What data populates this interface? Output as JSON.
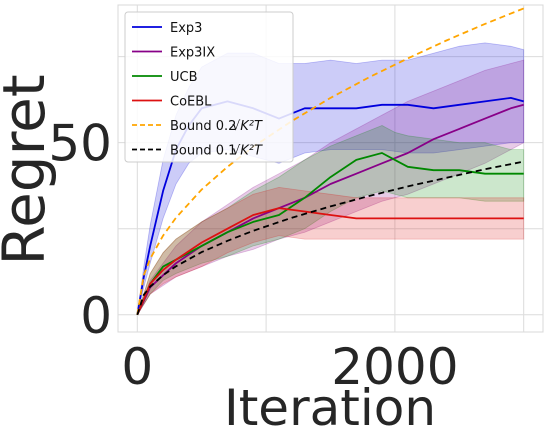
{
  "chart_data": {
    "type": "line",
    "title": "",
    "xlabel": "Iteration",
    "ylabel": "Regret",
    "xlim": [
      -150,
      3150
    ],
    "ylim": [
      -5,
      90
    ],
    "xticks": [
      0,
      2000
    ],
    "xtick_labels": [
      "0",
      "2000"
    ],
    "yticks": [
      0,
      50
    ],
    "ytick_labels": [
      "0",
      "50"
    ],
    "minor_grid_x": [
      1000,
      3000
    ],
    "minor_grid_y": [
      25,
      75
    ],
    "grid": true,
    "legend_position": "upper-left",
    "series": [
      {
        "name": "Exp3",
        "color": "#0000dd",
        "dash": "solid",
        "band": true,
        "x": [
          0,
          50,
          100,
          200,
          300,
          400,
          500,
          700,
          900,
          1100,
          1300,
          1500,
          1700,
          1900,
          2100,
          2300,
          2500,
          2700,
          2900,
          3000
        ],
        "y": [
          0,
          11,
          20,
          36,
          48,
          55,
          60,
          62,
          60,
          57,
          60,
          60,
          60,
          61,
          61,
          60,
          61,
          62,
          63,
          62
        ],
        "upper": [
          0,
          14,
          26,
          45,
          58,
          66,
          72,
          76,
          76,
          73,
          73,
          74,
          73,
          74,
          74,
          76,
          78,
          79,
          78,
          77
        ],
        "lower": [
          0,
          8,
          15,
          28,
          38,
          44,
          47,
          48,
          46,
          44,
          47,
          48,
          48,
          48,
          47,
          47,
          48,
          49,
          50,
          50
        ]
      },
      {
        "name": "Exp3IX",
        "color": "#880088",
        "dash": "solid",
        "band": true,
        "x": [
          0,
          100,
          300,
          500,
          700,
          900,
          1100,
          1300,
          1500,
          1700,
          1900,
          2100,
          2300,
          2500,
          2700,
          2900,
          3000
        ],
        "y": [
          0,
          8,
          15,
          20,
          24,
          28,
          31,
          34,
          38,
          41,
          44,
          47,
          51,
          54,
          57,
          60,
          61
        ],
        "upper": [
          0,
          10,
          20,
          27,
          32,
          37,
          41,
          45,
          50,
          54,
          58,
          62,
          65,
          68,
          71,
          73,
          74
        ],
        "lower": [
          0,
          6,
          11,
          14,
          17,
          19,
          22,
          24,
          27,
          30,
          33,
          35,
          38,
          41,
          44,
          48,
          50
        ]
      },
      {
        "name": "UCB",
        "color": "#008800",
        "dash": "solid",
        "band": true,
        "x": [
          0,
          100,
          200,
          300,
          500,
          700,
          900,
          1100,
          1300,
          1500,
          1700,
          1900,
          2000,
          2100,
          2300,
          2500,
          2700,
          2900,
          3000
        ],
        "y": [
          0,
          9,
          14,
          16,
          20,
          24,
          27,
          29,
          34,
          40,
          45,
          47,
          45,
          43,
          42,
          42,
          41,
          41,
          41
        ],
        "upper": [
          0,
          12,
          18,
          22,
          27,
          31,
          36,
          40,
          45,
          49,
          52,
          55,
          53,
          52,
          51,
          50,
          50,
          48,
          48
        ],
        "lower": [
          0,
          6,
          10,
          12,
          15,
          17,
          20,
          22,
          25,
          30,
          34,
          36,
          35,
          34,
          34,
          34,
          33,
          33,
          33
        ]
      },
      {
        "name": "CoEBL",
        "color": "#dd1111",
        "dash": "solid",
        "band": true,
        "x": [
          0,
          100,
          200,
          300,
          500,
          700,
          900,
          1100,
          1300,
          1500,
          1700,
          1900,
          2100,
          2300,
          2500,
          2700,
          2900,
          3000
        ],
        "y": [
          0,
          9,
          13,
          16,
          21,
          25,
          29,
          31,
          30,
          29,
          28,
          28,
          28,
          28,
          28,
          28,
          28,
          28
        ],
        "upper": [
          0,
          12,
          18,
          22,
          27,
          31,
          35,
          37,
          36,
          35,
          34,
          34,
          34,
          34,
          34,
          34,
          34,
          34
        ],
        "lower": [
          0,
          6,
          9,
          11,
          14,
          18,
          21,
          23,
          22,
          22,
          22,
          22,
          22,
          22,
          22,
          22,
          22,
          22
        ]
      },
      {
        "name": "Bound 0.2",
        "color": "#ffa500",
        "dash": "dashed",
        "band": false,
        "x": [
          0,
          50,
          100,
          200,
          300,
          500,
          700,
          900,
          1200,
          1500,
          1800,
          2100,
          2400,
          2700,
          3000
        ],
        "y": [
          0,
          11.5,
          16.3,
          23.0,
          28.2,
          36.4,
          43.0,
          48.8,
          56.3,
          63.0,
          69.0,
          74.5,
          79.7,
          84.5,
          89.0
        ]
      },
      {
        "name": "Bound 0.1",
        "color": "#000000",
        "dash": "dashed",
        "band": false,
        "x": [
          0,
          50,
          100,
          200,
          300,
          500,
          700,
          900,
          1200,
          1500,
          1800,
          2100,
          2400,
          2700,
          3000
        ],
        "y": [
          0,
          5.8,
          8.2,
          11.5,
          14.1,
          18.2,
          21.5,
          24.4,
          28.2,
          31.5,
          34.5,
          37.3,
          39.8,
          42.3,
          44.5
        ]
      }
    ],
    "legend": {
      "entries": [
        {
          "label": "Exp3",
          "color": "#0000dd",
          "dash": "solid"
        },
        {
          "label": "Exp3IX",
          "color": "#880088",
          "dash": "solid"
        },
        {
          "label": "UCB",
          "color": "#008800",
          "dash": "solid"
        },
        {
          "label": "CoEBL",
          "color": "#dd1111",
          "dash": "solid"
        },
        {
          "label": "Bound 0.2",
          "label_math": "√K²T",
          "color": "#ffa500",
          "dash": "dashed"
        },
        {
          "label": "Bound 0.1",
          "label_math": "√K²T",
          "color": "#000000",
          "dash": "dashed"
        }
      ]
    }
  }
}
